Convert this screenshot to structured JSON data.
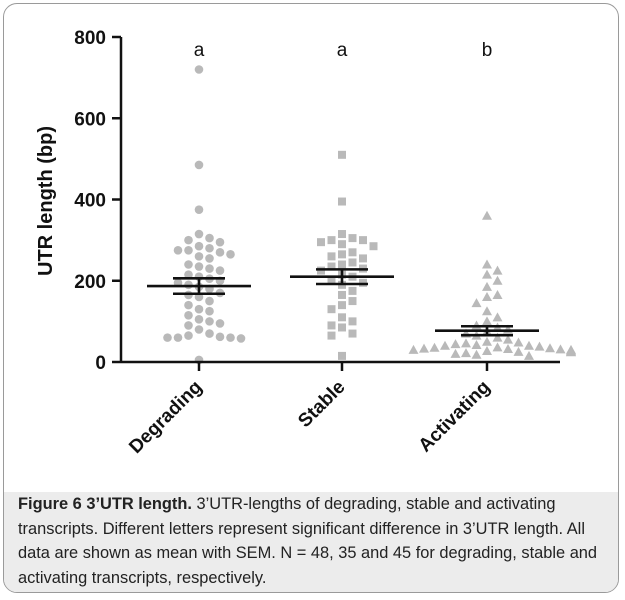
{
  "chart_data": {
    "type": "scatter",
    "ylabel": "UTR length (bp)",
    "ylim": [
      0,
      800
    ],
    "yticks": [
      0,
      200,
      400,
      600,
      800
    ],
    "grid": false,
    "categories": [
      "Degrading",
      "Stable",
      "Activating"
    ],
    "significance_letters": [
      "a",
      "a",
      "b"
    ],
    "series": [
      {
        "category": "Degrading",
        "marker": "circle",
        "color": "#b9b9b9",
        "n": 48,
        "mean": 187,
        "sem": 19,
        "values": [
          720,
          485,
          375,
          315,
          305,
          300,
          295,
          285,
          280,
          275,
          275,
          270,
          265,
          260,
          255,
          240,
          235,
          230,
          225,
          215,
          210,
          205,
          200,
          195,
          190,
          185,
          180,
          170,
          165,
          160,
          150,
          140,
          130,
          125,
          115,
          105,
          100,
          95,
          90,
          80,
          70,
          65,
          62,
          60,
          60,
          60,
          58,
          5
        ]
      },
      {
        "category": "Stable",
        "marker": "square",
        "color": "#b9b9b9",
        "n": 35,
        "mean": 210,
        "sem": 18,
        "values": [
          510,
          395,
          315,
          305,
          300,
          300,
          295,
          290,
          285,
          270,
          265,
          260,
          255,
          245,
          240,
          235,
          230,
          225,
          215,
          210,
          200,
          195,
          190,
          175,
          165,
          150,
          140,
          130,
          110,
          100,
          90,
          85,
          70,
          65,
          15
        ]
      },
      {
        "category": "Activating",
        "marker": "triangle",
        "color": "#b9b9b9",
        "n": 45,
        "mean": 77,
        "sem": 11,
        "values": [
          360,
          240,
          225,
          215,
          200,
          185,
          165,
          160,
          145,
          125,
          110,
          100,
          90,
          85,
          80,
          75,
          70,
          65,
          60,
          55,
          50,
          48,
          46,
          44,
          42,
          40,
          40,
          38,
          36,
          35,
          34,
          33,
          32,
          31,
          30,
          30,
          28,
          27,
          26,
          25,
          24,
          22,
          20,
          18,
          15
        ]
      }
    ]
  },
  "caption": {
    "label": "Figure 6",
    "title": "3’UTR length.",
    "text": "3’UTR-lengths of degrading, stable and activating transcripts. Different letters represent significant difference in 3’UTR length. All data are shown as mean with SEM. N = 48, 35 and 45 for degrading, stable and activating transcripts, respectively."
  }
}
